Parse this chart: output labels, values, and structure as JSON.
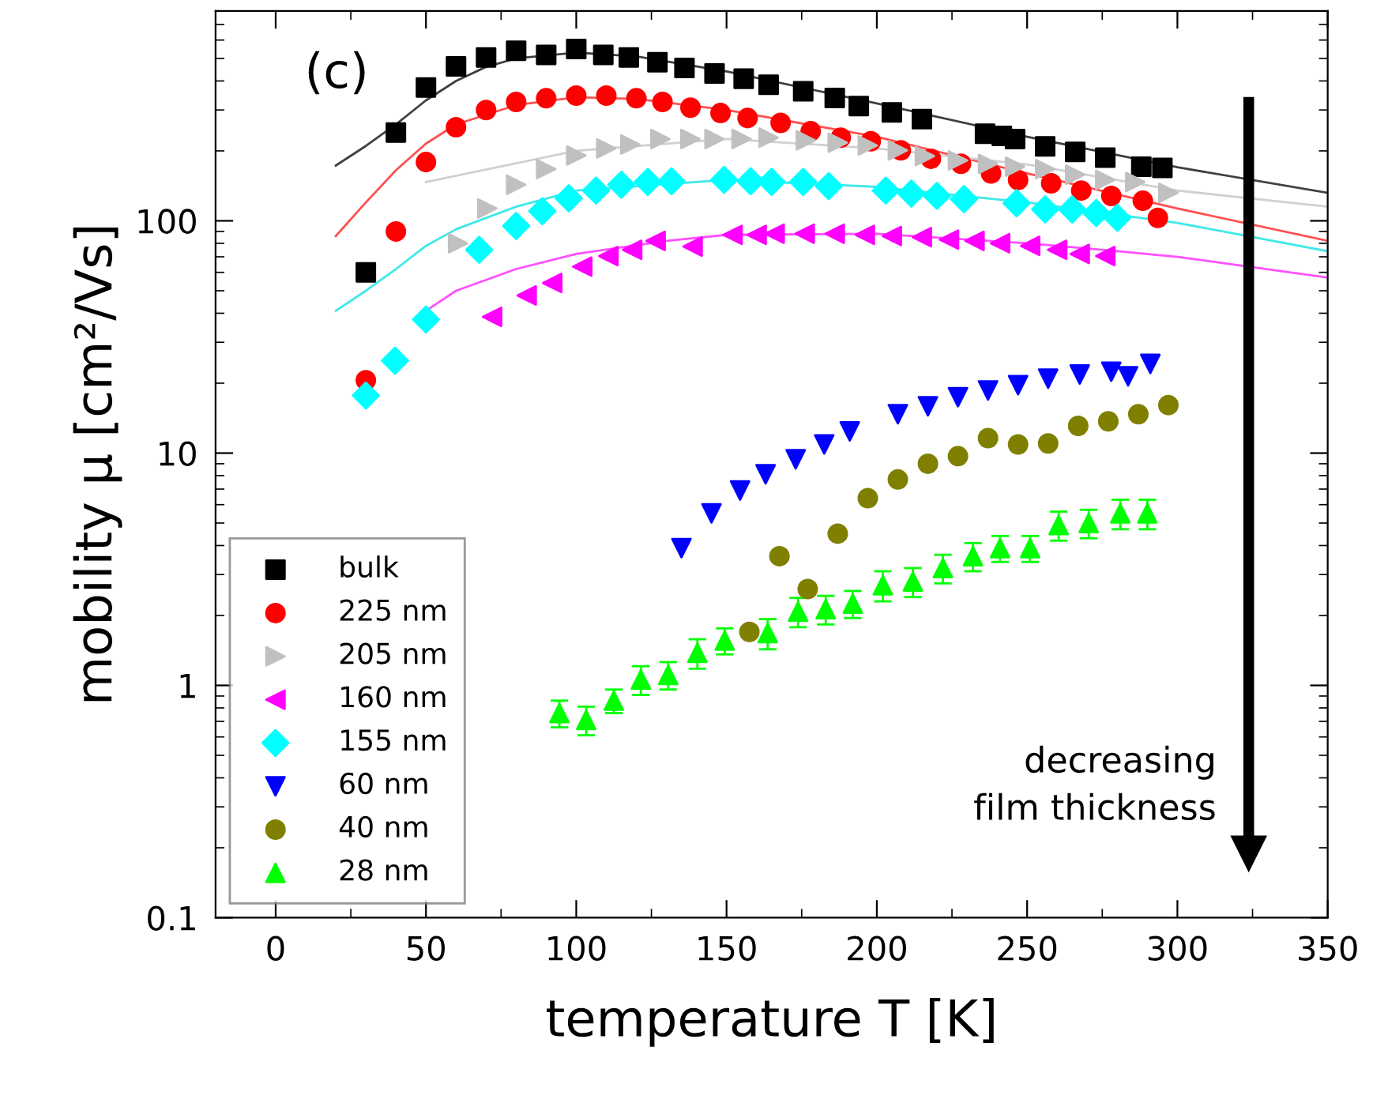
{
  "chart_data": {
    "type": "scatter",
    "xlabel": "temperature T [K]",
    "ylabel": "mobility μ [cm²/Vs]",
    "xlim": [
      -20,
      350
    ],
    "ylim": [
      0.1,
      800
    ],
    "log": "y",
    "xticks": [
      0,
      50,
      100,
      150,
      200,
      250,
      300,
      350
    ],
    "yticks": [
      0.1,
      1,
      10,
      100
    ],
    "grid": false,
    "legend": "bottom left",
    "annotations": [
      "(c)",
      "decreasing\nfilm thickness"
    ],
    "series": [
      {
        "name": "bulk",
        "color": "#000000",
        "marker": "square",
        "x": [
          30,
          40,
          50,
          60,
          70,
          80,
          90,
          100,
          109,
          117.5,
          127,
          136,
          146,
          155.7,
          164,
          175.5,
          186,
          194,
          205,
          215,
          236,
          241.6,
          246,
          256,
          266,
          276,
          288,
          295
        ],
        "values": [
          60,
          240,
          375,
          462,
          505,
          540,
          518,
          549,
          518,
          505,
          482,
          455,
          431,
          409,
          385,
          361,
          338,
          312,
          293,
          274,
          237,
          232,
          225,
          209,
          198,
          187,
          171,
          169
        ]
      },
      {
        "name": "225 nm",
        "color": "#ff0000",
        "marker": "circle",
        "x": [
          30,
          40,
          50,
          60,
          70,
          80,
          90,
          100,
          110,
          120,
          128.7,
          138,
          148,
          157,
          168,
          178,
          188,
          198,
          208,
          218,
          228,
          238,
          247,
          258,
          268,
          278,
          288.5,
          293.5
        ],
        "values": [
          20.6,
          90,
          179,
          253,
          300,
          325,
          337,
          346,
          346,
          337,
          325,
          307,
          291,
          277,
          264,
          243,
          228,
          220,
          201,
          185,
          176,
          160,
          150,
          145,
          135,
          128,
          122,
          103
        ]
      },
      {
        "name": "205 nm",
        "color": "#c0c0c0",
        "marker": "triangle-right",
        "x": [
          60.7,
          70.4,
          80,
          90,
          100,
          110,
          118,
          128,
          138,
          146,
          155,
          164,
          176.4,
          187,
          197,
          207,
          216,
          227,
          237,
          246,
          256,
          266,
          276,
          286,
          297
        ],
        "values": [
          80,
          113,
          143,
          167,
          191,
          205,
          213,
          225,
          225,
          225,
          225,
          228,
          222,
          217,
          211,
          201,
          190,
          182,
          176,
          171,
          167,
          158,
          150,
          147,
          132
        ]
      },
      {
        "name": "160 nm",
        "color": "#ff00ff",
        "marker": "triangle-left",
        "x": [
          72,
          83.5,
          92,
          102,
          110.7,
          118.6,
          126.4,
          138.7,
          152,
          160,
          166,
          176,
          186,
          196,
          205,
          215,
          224,
          232.5,
          241,
          251,
          260,
          267.5,
          276
        ],
        "values": [
          38.6,
          47.7,
          54,
          63.5,
          70.5,
          75,
          82,
          77.5,
          87,
          87,
          88,
          88,
          88,
          87,
          86,
          85,
          83,
          82,
          80,
          78,
          75,
          72,
          70.5
        ]
      },
      {
        "name": "155 nm",
        "color": "#00ffff",
        "marker": "diamond",
        "x": [
          30,
          39.7,
          50,
          67.7,
          80,
          88.7,
          97.5,
          106.6,
          115,
          123.8,
          131.7,
          149.2,
          158,
          165,
          175.5,
          184,
          203,
          211.5,
          220,
          229,
          246.5,
          256,
          265,
          273,
          280
        ],
        "values": [
          17.7,
          25,
          37.6,
          75,
          95,
          110,
          125,
          135,
          143,
          147,
          148,
          150,
          148,
          147,
          147,
          141,
          135,
          131,
          128,
          124,
          119,
          112,
          112,
          108,
          103
        ]
      },
      {
        "name": "60 nm",
        "color": "#0000ff",
        "marker": "triangle-down",
        "x": [
          135,
          145,
          154.5,
          163,
          173,
          182.5,
          191,
          207,
          217,
          227,
          237,
          247,
          257,
          267.5,
          278,
          283.6,
          291
        ],
        "values": [
          3.9,
          5.5,
          6.9,
          8.1,
          9.4,
          10.9,
          12.4,
          14.7,
          15.9,
          17.4,
          18.6,
          19.6,
          20.9,
          21.8,
          22.4,
          21.4,
          24.2
        ]
      },
      {
        "name": "40 nm",
        "color": "#808000",
        "marker": "circle",
        "x": [
          157.6,
          167.6,
          177,
          187,
          197,
          207,
          217,
          227,
          237,
          247,
          257,
          267,
          277,
          287,
          297
        ],
        "values": [
          1.7,
          3.6,
          2.6,
          4.5,
          6.4,
          7.7,
          9.0,
          9.7,
          11.6,
          10.9,
          11.0,
          13.1,
          13.7,
          14.7,
          16.1
        ]
      },
      {
        "name": "28 nm",
        "color": "#00ff00",
        "marker": "triangle",
        "x": [
          94.4,
          103.3,
          112.5,
          121.5,
          130.6,
          140.3,
          149.4,
          163.7,
          173.8,
          183,
          192,
          202,
          212,
          222,
          232,
          241,
          251,
          260.5,
          270.5,
          281,
          290
        ],
        "values": [
          0.76,
          0.71,
          0.86,
          1.06,
          1.11,
          1.38,
          1.56,
          1.68,
          2.08,
          2.13,
          2.25,
          2.7,
          2.8,
          3.2,
          3.6,
          3.9,
          3.9,
          4.9,
          5.0,
          5.5,
          5.5
        ],
        "errors": [
          0.1,
          0.1,
          0.1,
          0.15,
          0.15,
          0.2,
          0.2,
          0.25,
          0.3,
          0.3,
          0.3,
          0.4,
          0.4,
          0.45,
          0.5,
          0.5,
          0.5,
          0.7,
          0.7,
          0.8,
          0.8
        ]
      },
      {
        "type": "line",
        "color": "#404040",
        "marker": "none",
        "x": [
          20,
          30,
          40,
          50,
          60,
          70,
          80,
          100,
          120,
          150,
          200,
          250,
          300,
          350
        ],
        "values": [
          173,
          210,
          260,
          330,
          400,
          460,
          500,
          530,
          510,
          440,
          320,
          230,
          170,
          132
        ]
      },
      {
        "type": "line",
        "color": "#ff5050",
        "marker": "none",
        "x": [
          20,
          30,
          40,
          50,
          60,
          80,
          100,
          120,
          150,
          200,
          250,
          300,
          350
        ],
        "values": [
          86,
          120,
          165,
          215,
          260,
          315,
          340,
          335,
          300,
          230,
          160,
          113,
          82
        ]
      },
      {
        "type": "line",
        "color": "#d0d0d0",
        "marker": "none",
        "x": [
          50,
          100,
          150,
          200,
          250,
          300,
          350
        ],
        "values": [
          147,
          200,
          225,
          205,
          175,
          135,
          115
        ]
      },
      {
        "type": "line",
        "color": "#40e8e8",
        "marker": "none",
        "x": [
          20,
          30,
          40,
          50,
          60,
          80,
          100,
          150,
          200,
          250,
          300,
          350
        ],
        "values": [
          41,
          50,
          62,
          78,
          92,
          115,
          135,
          150,
          140,
          120,
          98,
          74
        ]
      },
      {
        "type": "line",
        "color": "#ff50ff",
        "marker": "none",
        "x": [
          50,
          60,
          80,
          100,
          130,
          150,
          200,
          250,
          280,
          300,
          350
        ],
        "values": [
          41,
          50,
          62,
          72,
          82,
          87,
          88,
          80,
          74,
          70,
          57
        ]
      }
    ]
  }
}
